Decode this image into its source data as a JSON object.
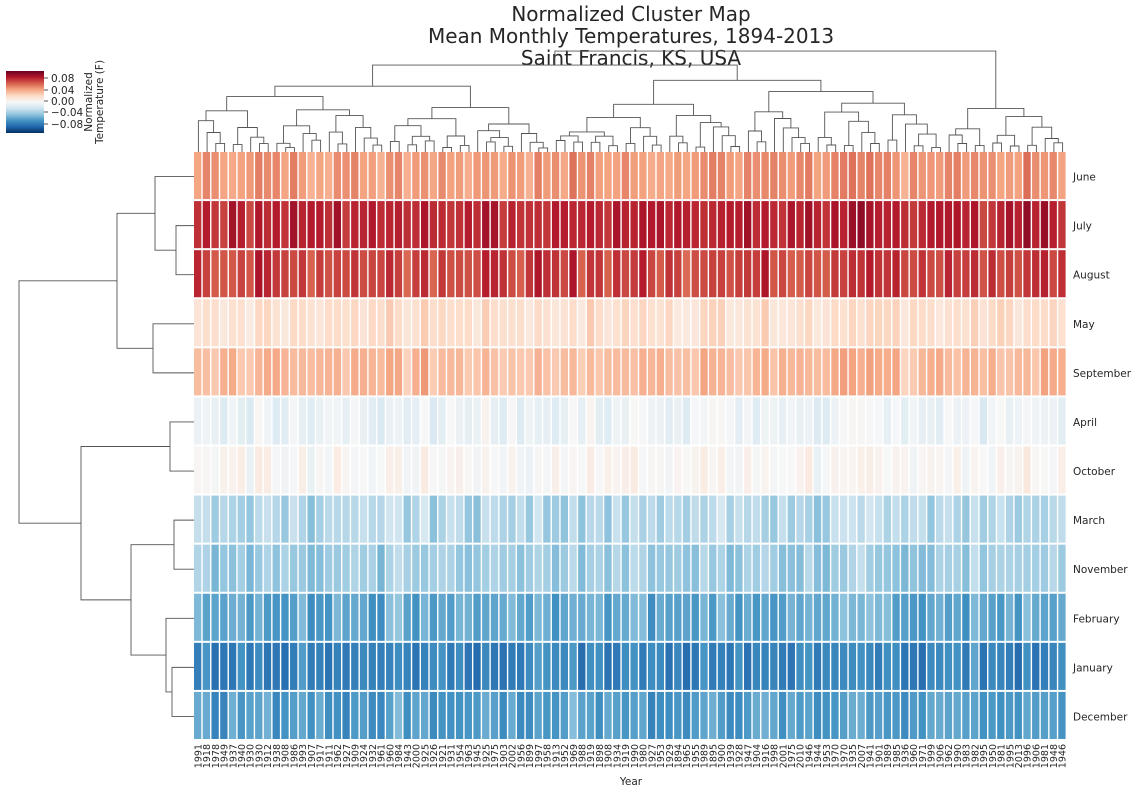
{
  "chart_data": {
    "type": "heatmap",
    "title": "Normalized Cluster Map\nMean Monthly Temperatures, 1894-2013\nSaint Francis, KS, USA",
    "xlabel": "Year",
    "ylabel": "",
    "colorbar": {
      "label": "Normalized\nTemperature (F)",
      "ticks": [
        "0.08",
        "0.04",
        "0.00",
        "−0.04",
        "−0.08"
      ],
      "range": [
        -0.1,
        0.1
      ],
      "colormap": "RdBu_r",
      "placement": "top-left"
    },
    "row_dendrogram": true,
    "col_dendrogram": true,
    "rows": [
      {
        "label": "June",
        "base": 0.045,
        "spread": 0.008
      },
      {
        "label": "July",
        "base": 0.078,
        "spread": 0.009
      },
      {
        "label": "August",
        "base": 0.07,
        "spread": 0.01
      },
      {
        "label": "May",
        "base": 0.018,
        "spread": 0.007
      },
      {
        "label": "September",
        "base": 0.033,
        "spread": 0.008
      },
      {
        "label": "April",
        "base": -0.006,
        "spread": 0.008
      },
      {
        "label": "October",
        "base": 0.002,
        "spread": 0.007
      },
      {
        "label": "March",
        "base": -0.03,
        "spread": 0.01
      },
      {
        "label": "November",
        "base": -0.036,
        "spread": 0.009
      },
      {
        "label": "February",
        "base": -0.052,
        "spread": 0.01
      },
      {
        "label": "January",
        "base": -0.066,
        "spread": 0.01
      },
      {
        "label": "December",
        "base": -0.056,
        "spread": 0.01
      }
    ],
    "column_labels": [
      "1991",
      "1918",
      "1978",
      "1949",
      "1937",
      "1940",
      "1930",
      "1930",
      "1912",
      "1938",
      "1908",
      "1986",
      "1993",
      "1907",
      "1917",
      "1911",
      "1962",
      "1927",
      "1909",
      "1924",
      "1932",
      "1961",
      "1960",
      "1984",
      "1943",
      "2000",
      "1925",
      "1926",
      "1921",
      "1931",
      "1954",
      "1963",
      "1945",
      "1925",
      "1975",
      "1903",
      "2002",
      "1956",
      "1899",
      "1997",
      "1958",
      "1913",
      "1952",
      "1969",
      "1988",
      "1919",
      "1898",
      "1908",
      "1934",
      "1919",
      "1990",
      "1980",
      "1927",
      "1953",
      "1929",
      "1894",
      "1965",
      "1955",
      "1989",
      "1895",
      "1900",
      "1939",
      "1928",
      "1947",
      "1904",
      "1916",
      "1998",
      "2001",
      "1975",
      "2010",
      "1946",
      "1944",
      "1953",
      "1970",
      "1970",
      "1935",
      "2007",
      "1941",
      "1901",
      "1989",
      "1985",
      "1936",
      "1960",
      "1971",
      "1999",
      "1906",
      "1962",
      "1990",
      "1983",
      "1982",
      "1995",
      "1950",
      "1981",
      "1995",
      "2013",
      "1996",
      "1906",
      "1981",
      "1948",
      "1946"
    ],
    "values_note": ""
  }
}
